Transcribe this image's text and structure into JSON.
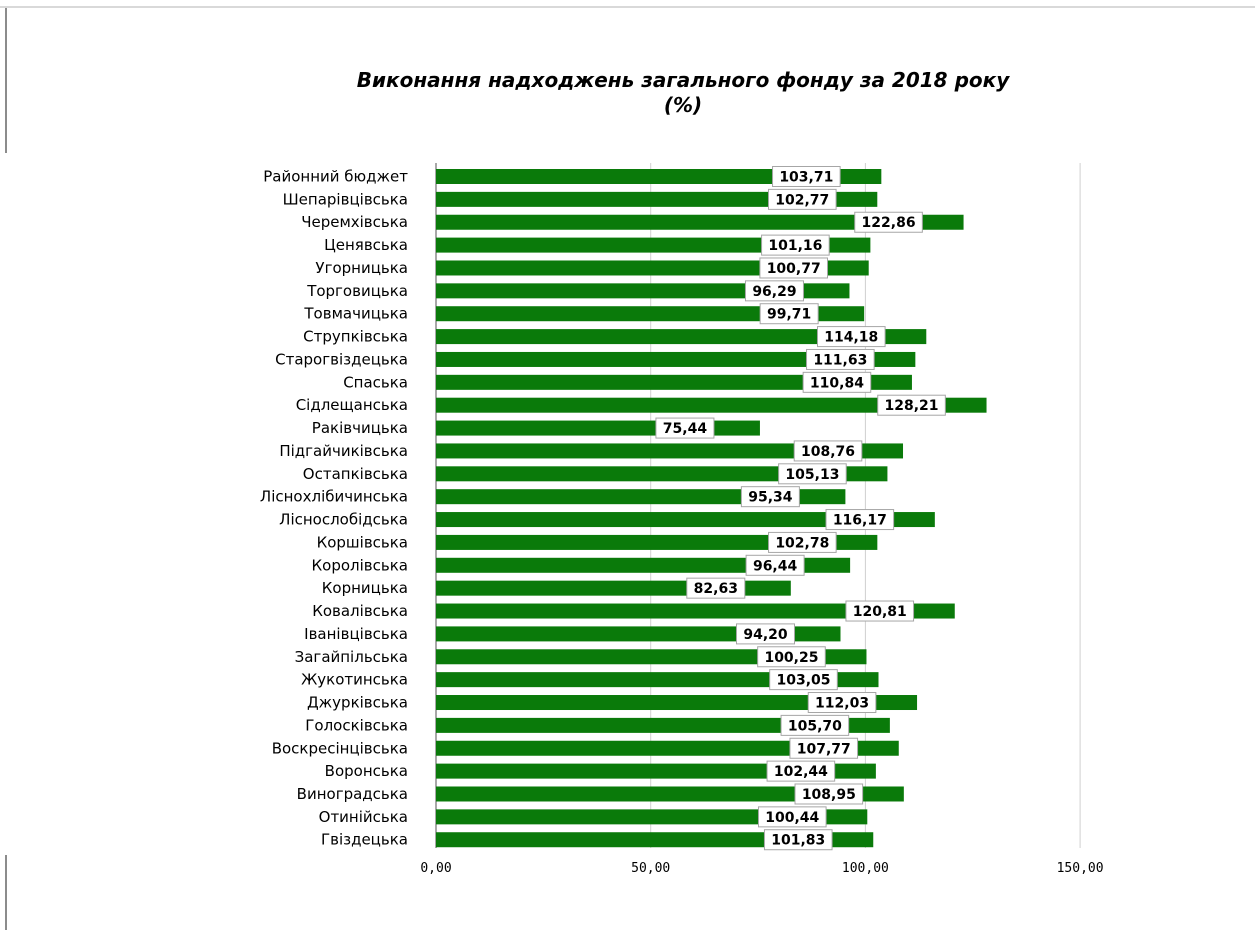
{
  "chart_data": {
    "type": "bar",
    "orientation": "horizontal",
    "title": "Виконання надходжень загального  фонду за   2018 року",
    "subtitle": "(%)",
    "categories": [
      "Районний бюджет",
      "Шепарівцівська",
      "Черемхівська",
      "Ценявська",
      "Угорницька",
      "Торговицька",
      "Товмачицька",
      "Струпківська",
      "Старогвіздецька",
      "Спаська",
      "Сідлещанська",
      "Раківчицька",
      "Підгайчиківська",
      "Остапківська",
      "Лісноxлібичинська",
      "Ліснослобідська",
      "Коршівська",
      "Королівська",
      "Корницька",
      "Ковалівська",
      "Іванівцівська",
      "Загайпільська",
      "Жукотинська",
      "Джурківська",
      "Голосківська",
      "Воскресінцівська",
      "Воронська",
      "Виноградська",
      "Отинійська",
      "Гвіздецька"
    ],
    "values": [
      103.71,
      102.77,
      122.86,
      101.16,
      100.77,
      96.29,
      99.71,
      114.18,
      111.63,
      110.84,
      128.21,
      75.44,
      108.76,
      105.13,
      95.34,
      116.17,
      102.78,
      96.44,
      82.63,
      120.81,
      94.2,
      100.25,
      103.05,
      112.03,
      105.7,
      107.77,
      102.44,
      108.95,
      100.44,
      101.83
    ],
    "value_labels": [
      "103,71",
      "102,77",
      "122,86",
      "101,16",
      "100,77",
      "96,29",
      "99,71",
      "114,18",
      "111,63",
      "110,84",
      "128,21",
      "75,44",
      "108,76",
      "105,13",
      "95,34",
      "116,17",
      "102,78",
      "96,44",
      "82,63",
      "120,81",
      "94,20",
      "100,25",
      "103,05",
      "112,03",
      "105,70",
      "107,77",
      "102,44",
      "108,95",
      "100,44",
      "101,83"
    ],
    "xlim": [
      0,
      150
    ],
    "x_ticks": [
      0,
      50,
      100,
      150
    ],
    "x_tick_labels": [
      "0,00",
      "50,00",
      "100,00",
      "150,00"
    ],
    "grid": true,
    "legend": "none",
    "bar_color": "#0a7a0a"
  }
}
